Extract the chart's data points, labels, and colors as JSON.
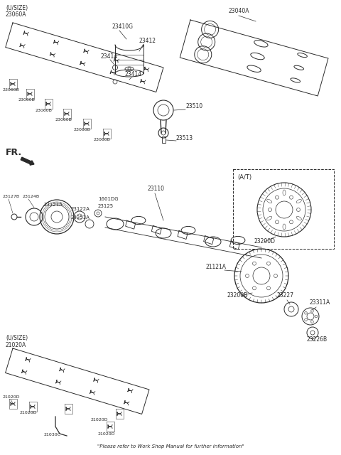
{
  "bg_color": "#ffffff",
  "line_color": "#2a2a2a",
  "footer": "\"Please refer to Work Shop Manual for further information\"",
  "labels": {
    "usize_top": "(U/SIZE)",
    "23060A": "23060A",
    "23060B_1": "23060B",
    "23060B_2": "23060B",
    "23060B_3": "23060B",
    "23060B_4": "23060B",
    "23060B_5": "23060B",
    "23060B_6": "23060B",
    "23410G": "23410G",
    "23040A": "23040A",
    "23414_1": "23414",
    "23412": "23412",
    "23414_2": "23414",
    "FR": "FR.",
    "23510": "23510",
    "23513": "23513",
    "23127B": "23127B",
    "23124B": "23124B",
    "23121A": "23121A",
    "23110": "23110",
    "1601DG": "1601DG",
    "23125": "23125",
    "23122A": "23122A",
    "24351A": "24351A",
    "AT": "(A/T)",
    "23200D": "23200D",
    "usize_bot": "(U/SIZE)",
    "21020A": "21020A",
    "21020D_1": "21020D",
    "21020D_2": "21020D",
    "21020D_3": "21020D",
    "21020D_4": "21020D",
    "21030C": "21030C",
    "21121A": "21121A",
    "23200B": "23200B",
    "23227": "23227",
    "23311A": "23311A",
    "23226B": "23226B"
  }
}
